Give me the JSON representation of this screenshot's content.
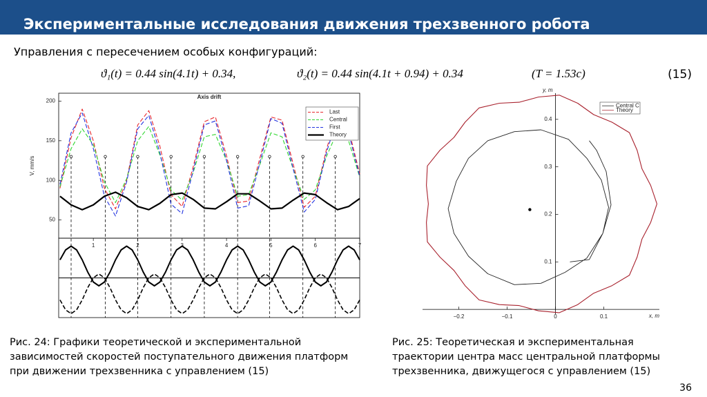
{
  "header": {
    "title": "Экспериментальные исследования движения трехзвенного робота"
  },
  "subtitle": "Управления с пересечением особых конфигураций:",
  "formula": {
    "parts": [
      "ϑ₁(t) = 0.44 sin(4.1t) + 0.34,",
      "ϑ₂(t) = 0.44 sin(4.1t + 0.94) + 0.34",
      "(T = 1.53c)"
    ],
    "number": "(15)"
  },
  "captions": [
    [
      "Рис. 24: Графики теоретической и экспериментальной",
      "зависимостей скоростей поступательного движения платформ",
      "при движении трехзвенника с управлением (15)"
    ],
    [
      "Рис. 25: Теоретическая и экспериментальная",
      "траектории центра масс центральной платформы",
      "трехзвенника, движущегося с управлением (15)"
    ]
  ],
  "page_number": "36",
  "chart_data": [
    {
      "type": "line",
      "axes": "box",
      "title": "Axis drift",
      "y_label": "V, mm/s",
      "x": [
        0.25,
        0.5,
        0.75,
        1,
        1.25,
        1.5,
        1.75,
        2,
        2.25,
        2.5,
        2.75,
        3,
        3.25,
        3.5,
        3.75,
        4,
        4.25,
        4.5,
        4.75,
        5,
        5.25,
        5.5,
        5.75,
        6,
        6.25,
        6.5,
        6.75,
        7
      ],
      "series": [
        {
          "name": "Last",
          "color": "#e8262b",
          "style": "dashed",
          "width": 1.1,
          "values": [
            90,
            154,
            190,
            150,
            90,
            64,
            100,
            170,
            188,
            143,
            82,
            67,
            117,
            174,
            180,
            131,
            72,
            74,
            128,
            180,
            176,
            121,
            66,
            80,
            139,
            186,
            165,
            108
          ]
        },
        {
          "name": "Central",
          "color": "#2fd62f",
          "style": "dashed",
          "width": 1.1,
          "values": [
            92,
            140,
            165,
            145,
            98,
            72,
            102,
            150,
            168,
            132,
            88,
            75,
            110,
            155,
            158,
            125,
            80,
            82,
            120,
            160,
            155,
            115,
            76,
            88,
            130,
            162,
            150,
            104
          ]
        },
        {
          "name": "First",
          "color": "#2233e0",
          "style": "dashed",
          "width": 1.1,
          "values": [
            95,
            160,
            185,
            140,
            80,
            55,
            98,
            165,
            182,
            135,
            70,
            58,
            112,
            170,
            175,
            125,
            65,
            68,
            122,
            178,
            172,
            115,
            60,
            76,
            135,
            180,
            160,
            105
          ]
        },
        {
          "name": "Theory",
          "color": "#000000",
          "style": "solid",
          "width": 2.2,
          "values": [
            80,
            69,
            63,
            69,
            80,
            85,
            78,
            67,
            63,
            71,
            82,
            84,
            76,
            65,
            64,
            73,
            83,
            83,
            74,
            64,
            65,
            75,
            84,
            82,
            72,
            63,
            67,
            77
          ]
        }
      ],
      "xlim": [
        0.22,
        7
      ],
      "ylim": [
        27,
        210
      ],
      "yticks": [
        50,
        100,
        150,
        200
      ],
      "legend": "upper right",
      "event_x": [
        0.5,
        1.27,
        2.0,
        2.75,
        3.5,
        4.25,
        4.97,
        5.72,
        6.45
      ],
      "event_y": 130
    },
    {
      "type": "line",
      "axes": "box",
      "xtick_side": "top",
      "x": [
        0.25,
        0.375,
        0.5,
        0.625,
        0.75,
        0.875,
        1,
        1.125,
        1.25,
        1.375,
        1.5,
        1.625,
        1.75,
        1.875,
        2,
        2.125,
        2.25,
        2.375,
        2.5,
        2.625,
        2.75,
        2.875,
        3,
        3.125,
        3.25,
        3.375,
        3.5,
        3.625,
        3.75,
        3.875,
        4,
        4.125,
        4.25,
        4.375,
        4.5,
        4.625,
        4.75,
        4.875,
        5,
        5.125,
        5.25,
        5.375,
        5.5,
        5.625,
        5.75,
        5.875,
        6,
        6.125,
        6.25,
        6.375,
        6.5,
        6.625,
        6.75,
        6.875,
        7
      ],
      "series": [
        {
          "color": "#000000",
          "style": "solid",
          "width": 2,
          "values": [
            0.227,
            0.352,
            0.4,
            0.352,
            0.227,
            0.073,
            -0.052,
            -0.1,
            -0.052,
            0.073,
            0.227,
            0.352,
            0.4,
            0.352,
            0.227,
            0.073,
            -0.052,
            -0.1,
            -0.052,
            0.073,
            0.227,
            0.352,
            0.4,
            0.352,
            0.227,
            0.073,
            -0.052,
            -0.1,
            -0.052,
            0.073,
            0.227,
            0.352,
            0.4,
            0.352,
            0.227,
            0.073,
            -0.052,
            -0.1,
            -0.052,
            0.073,
            0.227,
            0.352,
            0.4,
            0.352,
            0.227,
            0.073,
            -0.052,
            -0.1,
            -0.052,
            0.073,
            0.227,
            0.352,
            0.4,
            0.352,
            0.227
          ]
        },
        {
          "color": "#000000",
          "style": "dashed",
          "width": 1.6,
          "values": [
            -0.277,
            -0.402,
            -0.45,
            -0.402,
            -0.277,
            -0.123,
            0.002,
            0.05,
            0.002,
            -0.123,
            -0.277,
            -0.402,
            -0.45,
            -0.402,
            -0.277,
            -0.123,
            0.002,
            0.05,
            0.002,
            -0.123,
            -0.277,
            -0.402,
            -0.45,
            -0.402,
            -0.277,
            -0.123,
            0.002,
            0.05,
            0.002,
            -0.123,
            -0.277,
            -0.402,
            -0.45,
            -0.402,
            -0.277,
            -0.123,
            0.002,
            0.05,
            0.002,
            -0.123,
            -0.277,
            -0.402,
            -0.45,
            -0.402,
            -0.277,
            -0.123,
            0.002,
            0.05,
            0.002,
            -0.123,
            -0.277,
            -0.402,
            -0.45,
            -0.402,
            -0.277
          ]
        }
      ],
      "xlim": [
        0.22,
        7
      ],
      "ylim": [
        -0.5,
        0.5
      ],
      "xticks": [
        1,
        2,
        3,
        4,
        5,
        6,
        7
      ],
      "reference_line": 0
    },
    {
      "type": "line",
      "axes": "origin",
      "x_label": "x, m",
      "y_label": "y, m",
      "series": [
        {
          "name": "Central C",
          "color": "#222222",
          "style": "solid",
          "width": 0.9,
          "x": [
            0.03,
            0.07,
            0.098,
            0.11,
            0.095,
            0.065,
            0.027,
            -0.03,
            -0.085,
            -0.14,
            -0.18,
            -0.205,
            -0.222,
            -0.21,
            -0.18,
            -0.14,
            -0.085,
            -0.03,
            0.02,
            0.065,
            0.098,
            0.115,
            0.105,
            0.085,
            0.07
          ],
          "values": [
            0.1,
            0.105,
            0.16,
            0.215,
            0.272,
            0.318,
            0.358,
            0.378,
            0.374,
            0.355,
            0.318,
            0.27,
            0.212,
            0.16,
            0.112,
            0.075,
            0.052,
            0.055,
            0.078,
            0.108,
            0.16,
            0.22,
            0.29,
            0.335,
            0.355
          ]
        },
        {
          "name": "Theory",
          "color": "#a8202c",
          "style": "solid",
          "width": 1.1,
          "x": [
            0.21,
            0.197,
            0.179,
            0.169,
            0.153,
            0.117,
            0.079,
            0.046,
            0.008,
            -0.035,
            -0.075,
            -0.116,
            -0.158,
            -0.187,
            -0.21,
            -0.239,
            -0.265,
            -0.267,
            -0.263,
            -0.267,
            -0.265,
            -0.239,
            -0.21,
            -0.187,
            -0.158,
            -0.116,
            -0.075,
            -0.035,
            0.008,
            0.046,
            0.079,
            0.117,
            0.153,
            0.169,
            0.179,
            0.197,
            0.21
          ],
          "values": [
            0.222,
            0.261,
            0.296,
            0.335,
            0.372,
            0.394,
            0.41,
            0.434,
            0.451,
            0.447,
            0.436,
            0.434,
            0.424,
            0.394,
            0.362,
            0.335,
            0.302,
            0.261,
            0.222,
            0.183,
            0.142,
            0.11,
            0.082,
            0.05,
            0.02,
            0.01,
            0.008,
            -0.003,
            -0.007,
            0.01,
            0.034,
            0.05,
            0.072,
            0.11,
            0.148,
            0.183,
            0.222
          ]
        }
      ],
      "center": [
        -0.053,
        0.21
      ],
      "xlim": [
        -0.275,
        0.215
      ],
      "ylim": [
        -0.01,
        0.455
      ],
      "xticks": [
        {
          "value": -0.2,
          "label": "−0.2"
        },
        {
          "value": -0.1,
          "label": "−0.1"
        },
        0,
        0.1
      ],
      "yticks": [
        0.1,
        0.2,
        0.3,
        0.4
      ],
      "legend": "upper right"
    }
  ]
}
